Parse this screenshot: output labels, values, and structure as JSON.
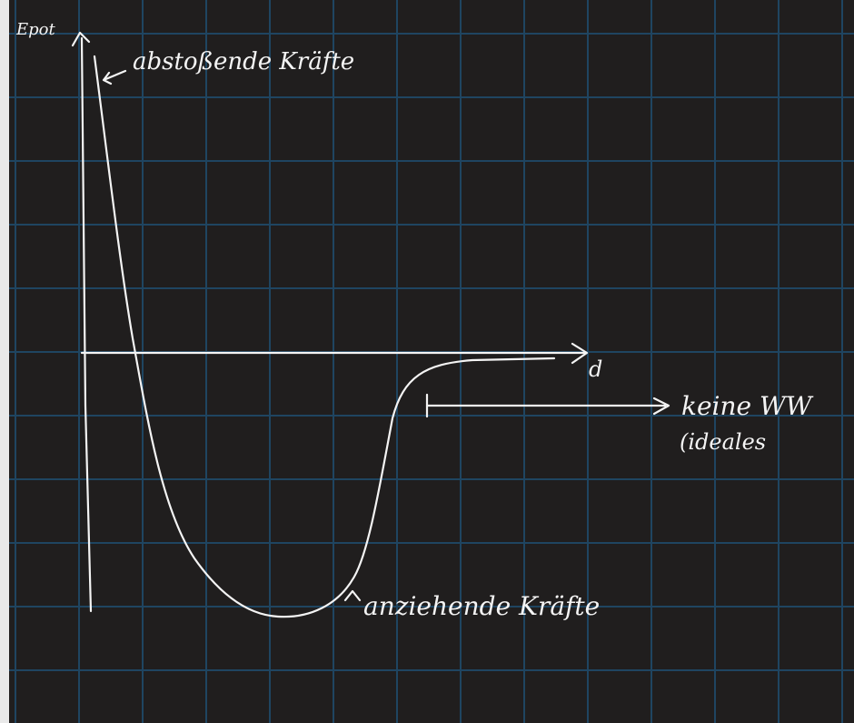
{
  "diagram": {
    "y_axis_label": "Epot",
    "x_axis_label": "d",
    "repulsive_label": "abstoßende Kräfte",
    "attractive_label": "anziehende Kräfte",
    "no_interaction_label": "keine WW",
    "ideal_label": "(ideales",
    "colors": {
      "background": "#201e1e",
      "grid": "#1f4561",
      "ink": "#f4f4f4"
    }
  }
}
